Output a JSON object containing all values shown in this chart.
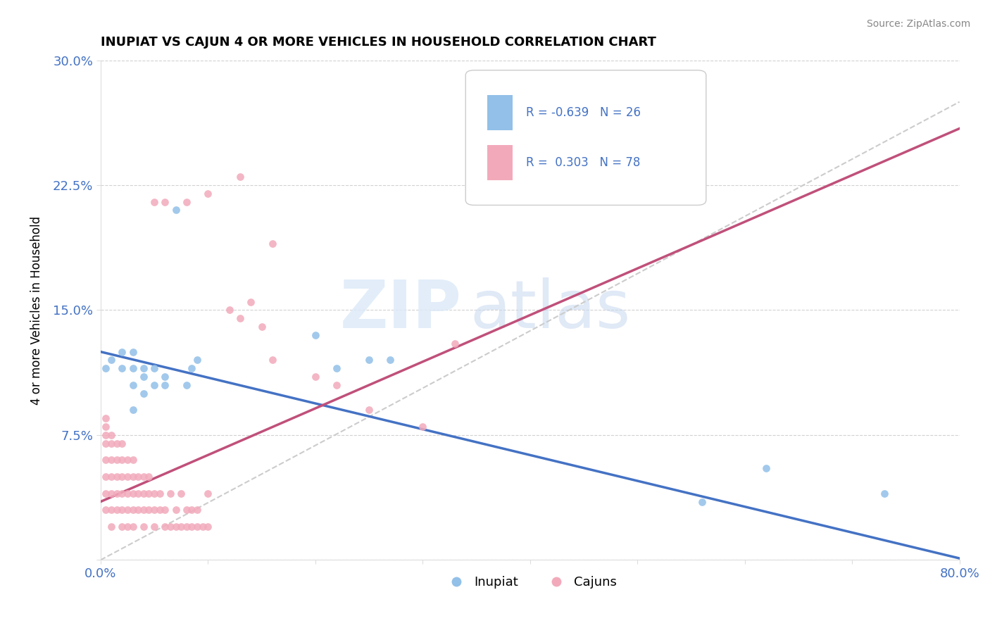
{
  "title": "INUPIAT VS CAJUN 4 OR MORE VEHICLES IN HOUSEHOLD CORRELATION CHART",
  "source": "Source: ZipAtlas.com",
  "ylabel": "4 or more Vehicles in Household",
  "watermark_zip": "ZIP",
  "watermark_atlas": "atlas",
  "legend_label1": "Inupiat",
  "legend_label2": "Cajuns",
  "R1": -0.639,
  "N1": 26,
  "R2": 0.303,
  "N2": 78,
  "color1": "#92C0E8",
  "color2": "#F2AABB",
  "line_color1": "#4472C4",
  "line_color2": "#C0507A",
  "trendline_color": "#CCCCCC",
  "xlim": [
    0.0,
    0.8
  ],
  "ylim": [
    0.0,
    0.3
  ],
  "xticks": [
    0.0,
    0.1,
    0.2,
    0.3,
    0.4,
    0.5,
    0.6,
    0.7,
    0.8
  ],
  "xticklabels": [
    "0.0%",
    "",
    "",
    "",
    "",
    "",
    "",
    "",
    "80.0%"
  ],
  "yticks": [
    0.0,
    0.075,
    0.15,
    0.225,
    0.3
  ],
  "yticklabels": [
    "",
    "7.5%",
    "15.0%",
    "22.5%",
    "30.0%"
  ],
  "inupiat_x": [
    0.005,
    0.01,
    0.02,
    0.02,
    0.03,
    0.03,
    0.03,
    0.03,
    0.04,
    0.04,
    0.04,
    0.05,
    0.05,
    0.06,
    0.06,
    0.07,
    0.08,
    0.085,
    0.09,
    0.2,
    0.22,
    0.25,
    0.27,
    0.56,
    0.62,
    0.73
  ],
  "inupiat_y": [
    0.115,
    0.12,
    0.115,
    0.125,
    0.105,
    0.115,
    0.125,
    0.09,
    0.1,
    0.11,
    0.115,
    0.105,
    0.115,
    0.105,
    0.11,
    0.21,
    0.105,
    0.115,
    0.12,
    0.135,
    0.115,
    0.12,
    0.12,
    0.035,
    0.055,
    0.04
  ],
  "cajun_x": [
    0.005,
    0.005,
    0.005,
    0.005,
    0.005,
    0.005,
    0.005,
    0.005,
    0.01,
    0.01,
    0.01,
    0.01,
    0.01,
    0.01,
    0.01,
    0.015,
    0.015,
    0.015,
    0.015,
    0.015,
    0.02,
    0.02,
    0.02,
    0.02,
    0.02,
    0.02,
    0.025,
    0.025,
    0.025,
    0.025,
    0.025,
    0.03,
    0.03,
    0.03,
    0.03,
    0.03,
    0.035,
    0.035,
    0.035,
    0.04,
    0.04,
    0.04,
    0.04,
    0.045,
    0.045,
    0.045,
    0.05,
    0.05,
    0.05,
    0.055,
    0.055,
    0.06,
    0.06,
    0.065,
    0.065,
    0.07,
    0.07,
    0.075,
    0.075,
    0.08,
    0.08,
    0.085,
    0.085,
    0.09,
    0.09,
    0.095,
    0.1,
    0.1,
    0.12,
    0.13,
    0.14,
    0.15,
    0.16,
    0.2,
    0.22,
    0.25,
    0.3,
    0.33
  ],
  "cajun_y": [
    0.03,
    0.04,
    0.05,
    0.06,
    0.07,
    0.075,
    0.08,
    0.085,
    0.02,
    0.03,
    0.04,
    0.05,
    0.06,
    0.07,
    0.075,
    0.03,
    0.04,
    0.05,
    0.06,
    0.07,
    0.02,
    0.03,
    0.04,
    0.05,
    0.06,
    0.07,
    0.02,
    0.03,
    0.04,
    0.05,
    0.06,
    0.02,
    0.03,
    0.04,
    0.05,
    0.06,
    0.03,
    0.04,
    0.05,
    0.02,
    0.03,
    0.04,
    0.05,
    0.03,
    0.04,
    0.05,
    0.02,
    0.03,
    0.04,
    0.03,
    0.04,
    0.02,
    0.03,
    0.02,
    0.04,
    0.02,
    0.03,
    0.02,
    0.04,
    0.02,
    0.03,
    0.02,
    0.03,
    0.02,
    0.03,
    0.02,
    0.02,
    0.04,
    0.15,
    0.145,
    0.155,
    0.14,
    0.12,
    0.11,
    0.105,
    0.09,
    0.08,
    0.13
  ],
  "cajun_high_x": [
    0.05,
    0.06,
    0.08,
    0.1,
    0.13,
    0.16
  ],
  "cajun_high_y": [
    0.215,
    0.215,
    0.215,
    0.22,
    0.23,
    0.19
  ]
}
